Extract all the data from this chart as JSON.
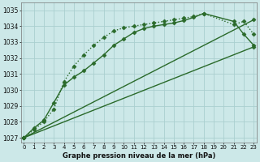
{
  "title": "Graphe pression niveau de la mer (hPa)",
  "bg_color": "#cce8e8",
  "grid_color": "#aacfcf",
  "line_color": "#2a6a2a",
  "xlim_min": -0.3,
  "xlim_max": 23.3,
  "ylim_min": 1026.7,
  "ylim_max": 1035.5,
  "yticks": [
    1027,
    1028,
    1029,
    1030,
    1031,
    1032,
    1033,
    1034,
    1035
  ],
  "xticks": [
    0,
    1,
    2,
    3,
    4,
    5,
    6,
    7,
    8,
    9,
    10,
    11,
    12,
    13,
    14,
    15,
    16,
    17,
    18,
    19,
    20,
    21,
    22,
    23
  ],
  "series": [
    {
      "x": [
        0,
        1,
        2,
        3,
        4,
        5,
        6,
        7,
        8,
        9,
        10,
        11,
        12,
        13,
        14,
        15,
        16,
        17,
        18,
        21,
        22,
        23
      ],
      "y": [
        1027.0,
        1027.5,
        1028.0,
        1028.8,
        1030.5,
        1031.5,
        1032.2,
        1032.8,
        1033.3,
        1033.7,
        1033.9,
        1034.0,
        1034.1,
        1034.2,
        1034.3,
        1034.4,
        1034.5,
        1034.6,
        1034.8,
        1034.1,
        1034.3,
        1033.5
      ],
      "linestyle": ":",
      "marker": "D",
      "markersize": 2.5,
      "linewidth": 1.0
    },
    {
      "x": [
        0,
        1,
        2,
        3,
        4,
        5,
        6,
        7,
        8,
        9,
        10,
        11,
        12,
        13,
        14,
        15,
        16,
        17,
        18,
        21,
        22,
        23
      ],
      "y": [
        1027.0,
        1027.6,
        1028.1,
        1029.2,
        1030.3,
        1030.8,
        1031.2,
        1031.7,
        1032.2,
        1032.8,
        1033.2,
        1033.6,
        1033.85,
        1034.0,
        1034.1,
        1034.2,
        1034.35,
        1034.55,
        1034.8,
        1034.3,
        1033.5,
        1032.8
      ],
      "linestyle": "-",
      "marker": "D",
      "markersize": 2.5,
      "linewidth": 1.0
    },
    {
      "x": [
        0,
        23
      ],
      "y": [
        1027.0,
        1032.7
      ],
      "linestyle": "-",
      "marker": "D",
      "markersize": 2.5,
      "linewidth": 1.0
    },
    {
      "x": [
        0,
        23
      ],
      "y": [
        1027.0,
        1034.4
      ],
      "linestyle": "-",
      "marker": "D",
      "markersize": 2.5,
      "linewidth": 1.0
    }
  ]
}
